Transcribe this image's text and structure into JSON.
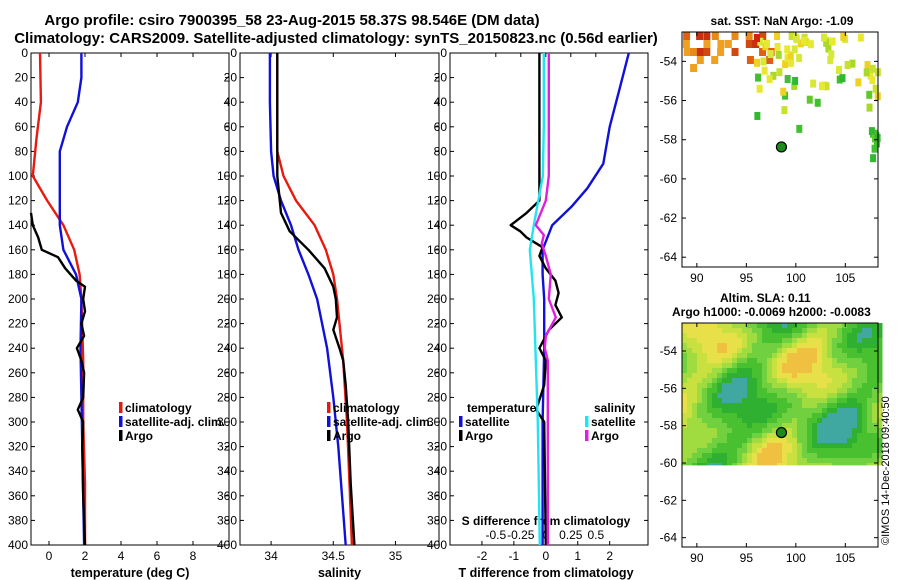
{
  "title": {
    "line1": "Argo profile: csiro 7900395_58 23-Aug-2015 58.37S 98.546E (DM data)",
    "line2": "Climatology: CARS2009. Satellite-adjusted climatology: synTS_20150823.nc (0.56d earlier)"
  },
  "colors": {
    "climatology": "#e8190f",
    "satellite": "#1010d8",
    "argo": "#000000",
    "sal_satellite": "#22e4f0",
    "sal_argo": "#e020e0"
  },
  "depth_axis": {
    "ticks": [
      "0",
      "20",
      "40",
      "60",
      "80",
      "100",
      "120",
      "140",
      "160",
      "180",
      "200",
      "220",
      "240",
      "260",
      "280",
      "300",
      "320",
      "340",
      "360",
      "380",
      "400"
    ]
  },
  "chart_data": [
    {
      "type": "line",
      "id": "temperature",
      "xlabel": "temperature (deg C)",
      "ylabel": "",
      "xlim": [
        -1,
        10
      ],
      "ylim": [
        400,
        0
      ],
      "xticks": [
        "0",
        "2",
        "4",
        "6",
        "8"
      ],
      "legend": [
        "climatology",
        "satellite-adj. clim.",
        "Argo"
      ],
      "series": [
        {
          "name": "climatology",
          "depth": [
            0,
            40,
            70,
            100,
            120,
            140,
            160,
            180,
            200,
            250,
            300,
            350,
            400
          ],
          "values": [
            -0.5,
            -0.45,
            -0.7,
            -0.9,
            -0.1,
            0.8,
            1.4,
            1.7,
            1.8,
            1.9,
            1.9,
            2.0,
            2.0
          ]
        },
        {
          "name": "satellite-adj. clim.",
          "depth": [
            0,
            20,
            40,
            60,
            80,
            100,
            120,
            140,
            160,
            180,
            200,
            240,
            280,
            320,
            360,
            400
          ],
          "values": [
            1.8,
            1.8,
            1.6,
            1.0,
            0.6,
            0.6,
            0.6,
            0.6,
            0.8,
            1.5,
            1.8,
            1.75,
            1.8,
            1.85,
            1.9,
            1.95
          ]
        },
        {
          "name": "Argo",
          "depth": [
            130,
            140,
            150,
            160,
            166,
            175,
            185,
            190,
            200,
            210,
            220,
            230,
            240,
            250,
            260,
            280,
            290,
            300,
            320,
            360,
            400
          ],
          "values": [
            -1.0,
            -0.9,
            -0.6,
            -0.4,
            0.5,
            0.9,
            1.5,
            2.0,
            1.9,
            2.0,
            1.8,
            1.95,
            1.55,
            1.8,
            1.95,
            1.9,
            1.6,
            1.9,
            1.85,
            1.9,
            2.0
          ]
        }
      ]
    },
    {
      "type": "line",
      "id": "salinity",
      "xlabel": "salinity",
      "ylabel": "",
      "xlim": [
        33.75,
        35.35
      ],
      "ylim": [
        400,
        0
      ],
      "xticks": [
        "34",
        "34.5",
        "35"
      ],
      "legend": [
        "climatology",
        "satellite-adj. clim.",
        "Argo"
      ],
      "series": [
        {
          "name": "climatology",
          "depth": [
            0,
            40,
            80,
            100,
            120,
            140,
            160,
            180,
            200,
            250,
            300,
            350,
            400
          ],
          "values": [
            34.05,
            34.05,
            34.05,
            34.1,
            34.2,
            34.35,
            34.44,
            34.5,
            34.53,
            34.58,
            34.61,
            34.63,
            34.65
          ]
        },
        {
          "name": "satellite-adj. clim.",
          "depth": [
            0,
            40,
            80,
            100,
            120,
            140,
            160,
            180,
            200,
            240,
            280,
            320,
            360,
            400
          ],
          "values": [
            33.99,
            33.99,
            34.0,
            34.02,
            34.08,
            34.16,
            34.22,
            34.3,
            34.37,
            34.45,
            34.5,
            34.54,
            34.57,
            34.6
          ]
        },
        {
          "name": "Argo",
          "depth": [
            0,
            60,
            100,
            130,
            145,
            160,
            175,
            190,
            200,
            215,
            225,
            240,
            250,
            270,
            300,
            350,
            400
          ],
          "values": [
            34.05,
            34.05,
            34.05,
            34.08,
            34.15,
            34.3,
            34.43,
            34.5,
            34.52,
            34.53,
            34.5,
            34.55,
            34.58,
            34.6,
            34.62,
            34.64,
            34.67
          ]
        }
      ]
    },
    {
      "type": "line",
      "id": "differences",
      "xlabel": "T difference from climatology",
      "ylabel": "",
      "xlim": [
        -3,
        3.2
      ],
      "ylim": [
        400,
        0
      ],
      "xticks": [
        "-2",
        "-1",
        "0",
        "1",
        "2"
      ],
      "second_xlabel": "S difference from climatology",
      "second_xticks": [
        "-0.5",
        "-0.25",
        "0",
        "0.25",
        "0.5"
      ],
      "legend_left_title": "temperature",
      "legend_left": [
        "satellite",
        "Argo"
      ],
      "legend_right_title": "salinity",
      "legend_right": [
        "satellite",
        "Argo"
      ],
      "series": [
        {
          "name": "T satellite",
          "depth": [
            0,
            30,
            60,
            90,
            110,
            125,
            140,
            160,
            180,
            200,
            240,
            300,
            400
          ],
          "values": [
            2.6,
            2.3,
            2.0,
            1.8,
            1.3,
            0.8,
            0.2,
            -0.1,
            -0.1,
            -0.05,
            -0.05,
            -0.1,
            -0.1
          ]
        },
        {
          "name": "T Argo",
          "depth": [
            0,
            60,
            100,
            120,
            130,
            140,
            145,
            150,
            158,
            165,
            175,
            185,
            195,
            205,
            215,
            225,
            240,
            250,
            270,
            290,
            300,
            400
          ],
          "values": [
            -0.2,
            -0.2,
            -0.2,
            -0.2,
            -0.6,
            -1.1,
            -0.8,
            -0.6,
            -0.1,
            -0.2,
            0.0,
            0.3,
            0.4,
            0.3,
            0.5,
            0.1,
            -0.2,
            0.0,
            -0.05,
            -0.3,
            -0.05,
            0.0
          ]
        },
        {
          "name": "S satellite",
          "depth": [
            0,
            60,
            100,
            140,
            160,
            200,
            250,
            300,
            350,
            400
          ],
          "values": [
            -0.02,
            -0.02,
            -0.03,
            -0.12,
            -0.16,
            -0.12,
            -0.1,
            -0.08,
            -0.07,
            -0.06
          ]
        },
        {
          "name": "S Argo",
          "depth": [
            0,
            60,
            100,
            120,
            140,
            148,
            155,
            165,
            180,
            200,
            215,
            230,
            240,
            250,
            300,
            400
          ],
          "values": [
            0.03,
            0.03,
            0.03,
            0.0,
            -0.1,
            -0.02,
            -0.04,
            0.0,
            0.05,
            0.03,
            0.1,
            0.0,
            -0.01,
            0.02,
            0.02,
            0.02
          ]
        }
      ]
    },
    {
      "type": "heatmap",
      "id": "sst_map",
      "title": "sat. SST: NaN Argo: -1.09",
      "xlim": [
        88.5,
        108.3
      ],
      "ylim": [
        -64.5,
        -52.5
      ],
      "xticks": [
        "90",
        "95",
        "100",
        "105"
      ],
      "yticks": [
        "-54",
        "-56",
        "-58",
        "-60",
        "-62",
        "-64"
      ],
      "argo_position": {
        "lon": 98.546,
        "lat": -58.37
      }
    },
    {
      "type": "heatmap",
      "id": "sla_map",
      "title_line1": "Altim. SLA: 0.11",
      "title_line2": "Argo h1000: -0.0069 h2000: -0.0083",
      "xlim": [
        88.5,
        108.3
      ],
      "ylim": [
        -64.5,
        -52.5
      ],
      "xticks": [
        "90",
        "95",
        "100",
        "105"
      ],
      "yticks": [
        "-54",
        "-56",
        "-58",
        "-60",
        "-62",
        "-64"
      ],
      "argo_position": {
        "lon": 98.546,
        "lat": -58.37
      }
    }
  ],
  "credit": "©IMOS 14-Dec-2018 09:40:50"
}
